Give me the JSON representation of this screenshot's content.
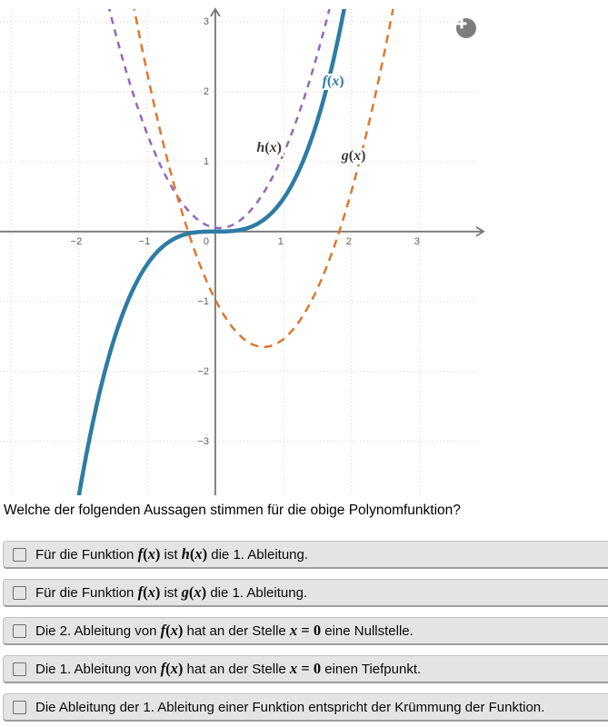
{
  "graph": {
    "zoom_in_icon": "plus",
    "chart_data": {
      "type": "line",
      "title": "",
      "xlabel": "",
      "ylabel": "",
      "grid": true,
      "view": {
        "xmin": -3.16,
        "xmax": 3.87,
        "ymin": -3.77,
        "ymax": 3.18
      },
      "x_tick_labels": [
        -2,
        -1,
        0,
        1,
        2,
        3
      ],
      "y_tick_labels": [
        3,
        2,
        1,
        -1,
        -2,
        -3
      ],
      "axis_color": "#757575",
      "grid_color": "#cdcdcd",
      "series": [
        {
          "name": "f(x)",
          "description": "cubic through origin, f(x) ≈ 0.47x^3",
          "poly": [
            0,
            0,
            0,
            0.47
          ],
          "style": "solid",
          "width": 4.5,
          "color": "#2e7ca5",
          "label_color": "#2e7ca5",
          "label_pos": {
            "x": 1.73,
            "y": 2.14
          }
        },
        {
          "name": "h(x)",
          "description": "parabola with vertex near origin, h(x) ≈ 1.2x^2",
          "poly": [
            0.054,
            -0.144,
            1.2,
            0
          ],
          "style": "dashed",
          "dash": "7.5 6.5",
          "width": 2.5,
          "color": "#9467bd",
          "label_color": "#3d3d3d",
          "label_pos": {
            "x": 0.79,
            "y": 1.19
          }
        },
        {
          "name": "g(x)",
          "description": "parabola with vertex (0.71, -1.65), g(x) ≈ 1.34(x-0.71)^2 - 1.65",
          "poly": [
            -0.974,
            -1.903,
            1.34,
            0
          ],
          "style": "dashed",
          "dash": "9 6.5",
          "width": 2.5,
          "color": "#e0762d",
          "label_color": "#3d3d3d",
          "label_pos": {
            "x": 2.03,
            "y": 1.08
          }
        }
      ]
    }
  },
  "question": "Welche der folgenden Aussagen stimmen für die obige Polynomfunktion?",
  "options": [
    {
      "checked": false,
      "segments": [
        {
          "t": "text",
          "v": "Für die Funktion "
        },
        {
          "t": "math",
          "v": "f(x)"
        },
        {
          "t": "text",
          "v": " ist "
        },
        {
          "t": "math",
          "v": "h(x)"
        },
        {
          "t": "text",
          "v": " die 1. Ableitung."
        }
      ]
    },
    {
      "checked": false,
      "segments": [
        {
          "t": "text",
          "v": "Für die Funktion "
        },
        {
          "t": "math",
          "v": "f(x)"
        },
        {
          "t": "text",
          "v": " ist "
        },
        {
          "t": "math",
          "v": "g(x)"
        },
        {
          "t": "text",
          "v": " die 1. Ableitung."
        }
      ]
    },
    {
      "checked": false,
      "segments": [
        {
          "t": "text",
          "v": "Die 2. Ableitung von "
        },
        {
          "t": "math",
          "v": "f(x)"
        },
        {
          "t": "text",
          "v": " hat an der Stelle "
        },
        {
          "t": "math",
          "v": "x = 0"
        },
        {
          "t": "text",
          "v": " eine Nullstelle."
        }
      ]
    },
    {
      "checked": false,
      "segments": [
        {
          "t": "text",
          "v": "Die 1. Ableitung von "
        },
        {
          "t": "math",
          "v": "f(x)"
        },
        {
          "t": "text",
          "v": " hat an der Stelle "
        },
        {
          "t": "math",
          "v": "x = 0"
        },
        {
          "t": "text",
          "v": " einen Tiefpunkt."
        }
      ]
    },
    {
      "checked": false,
      "segments": [
        {
          "t": "text",
          "v": "Die Ableitung der 1. Ableitung einer Funktion entspricht der Krümmung der Funktion."
        }
      ]
    }
  ]
}
